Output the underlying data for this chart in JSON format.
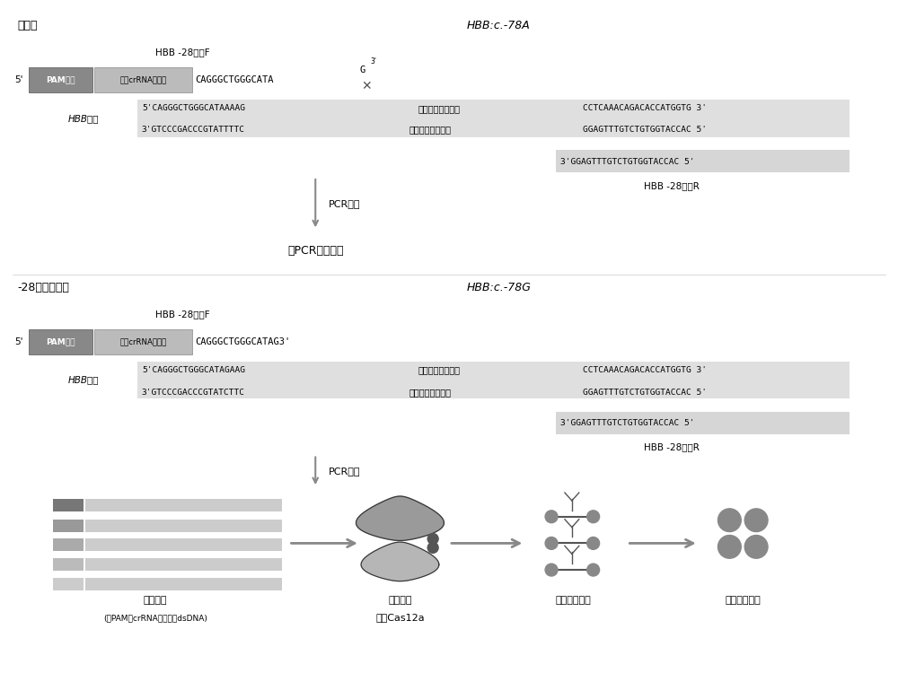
{
  "fig_width": 10.0,
  "fig_height": 7.5,
  "bg_color": "#ffffff",
  "text_color": "#000000",
  "gray_box_color": "#aaaaaa",
  "light_gray_color": "#cccccc",
  "dna_bg_color": "#d4d4d4",
  "section1": {
    "label_left": "正常人",
    "label_right": "HBB:c.-78A",
    "primer_f_label": "HBB -28引物F",
    "crRNA_line": "5'  PAM序列  通用crRNA识别区  CAGGGCTGGGCATA",
    "crRNA_end": "G  3'",
    "cross_note": "×",
    "dna_top": "5'CAGGGCTGGGCATAAAAG－－－－－－－－CCTCAAACAGACACCATGGTG 3'",
    "dna_bot": "3'GTCCCGACCCGTATTTTC－－－－－－－－GGAGTTTGTCTGTGGTACCAC 5'",
    "hbb_gene_label": "HBB基因",
    "primer_r_seq": "3'GGAGTTTGTCTGTGGTACCAC 5'",
    "primer_r_label": "HBB -28引物R",
    "arrow_label": "PCR扩增",
    "result_label": "无PCR扩增产物"
  },
  "section2": {
    "label_left": "-28突变携带者",
    "label_right": "HBB:c.-78G",
    "primer_f_label": "HBB -28引物F",
    "crRNA_line": "5'  PAM序列  通用crRNA识别区  CAGGGCTGGGCATAG3'",
    "dna_top": "5'CAGGGCTGGGCATAGAAG－－－－－－－－CCTCAAACAGACACCATGGTG 3'",
    "dna_bot": "3'GTCCCGACCCGTATCTTC－－－－－－－－GGAGTTTGTCTGTGGTACCAC 5'",
    "hbb_gene_label": "HBB基因",
    "primer_r_seq": "3'GGAGTTTGTCTGTGGTACCAC 5'",
    "primer_r_label": "HBB -28引物R",
    "arrow_label": "PCR扩增",
    "pcr_product_label1": "扩增产物",
    "pcr_product_label2": "(含PAM和crRNA识别区的dsDNA)",
    "cas_label1": "扩增产物",
    "cas_label2": "激活Cas12a",
    "cut_label": "切割荧光探针",
    "release_label": "释放荧光信号"
  }
}
